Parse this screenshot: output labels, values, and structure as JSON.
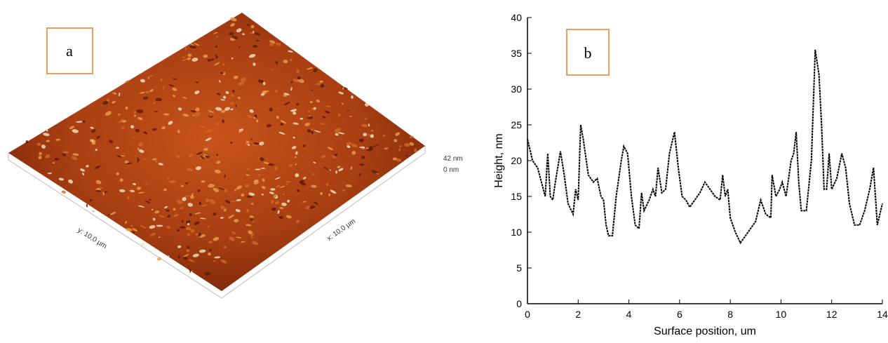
{
  "panel_a": {
    "label": "a",
    "scale_max": "42 nm",
    "scale_min": "0 nm",
    "y_axis": "y: 10,0 µm",
    "x_axis": "x: 10,0 µm"
  },
  "chart_data": {
    "type": "line",
    "annotation": "b",
    "x_label": "Surface position, um",
    "y_label": "Height, nm",
    "color": "#000000",
    "x": [
      0,
      0.2,
      0.4,
      0.55,
      0.7,
      0.8,
      0.9,
      1.0,
      1.1,
      1.3,
      1.45,
      1.6,
      1.8,
      1.9,
      2.0,
      2.1,
      2.2,
      2.4,
      2.6,
      2.75,
      2.9,
      3.0,
      3.1,
      3.2,
      3.35,
      3.5,
      3.7,
      3.8,
      3.95,
      4.1,
      4.25,
      4.4,
      4.5,
      4.6,
      4.8,
      4.95,
      5.05,
      5.15,
      5.3,
      5.45,
      5.6,
      5.8,
      5.95,
      6.1,
      6.25,
      6.4,
      6.6,
      6.8,
      7.0,
      7.2,
      7.4,
      7.6,
      7.7,
      7.8,
      7.9,
      8.0,
      8.2,
      8.4,
      8.6,
      8.8,
      9.0,
      9.2,
      9.4,
      9.6,
      9.65,
      9.8,
      9.95,
      10.05,
      10.2,
      10.4,
      10.5,
      10.6,
      10.7,
      10.8,
      11.0,
      11.2,
      11.35,
      11.5,
      11.6,
      11.7,
      11.8,
      11.9,
      12.0,
      12.2,
      12.4,
      12.55,
      12.7,
      12.9,
      13.1,
      13.3,
      13.5,
      13.65,
      13.8,
      14
    ],
    "values": [
      23,
      20,
      19,
      17,
      15,
      21,
      15,
      14.5,
      17,
      21.3,
      18,
      14,
      12.5,
      16,
      14.5,
      25,
      23,
      18,
      17,
      17.5,
      15,
      14.5,
      11,
      9.5,
      9.5,
      15,
      20,
      22,
      21,
      15,
      11,
      10.5,
      15.5,
      13,
      14.5,
      16,
      15,
      19,
      15.5,
      16,
      21,
      24,
      19,
      15,
      14.5,
      13.5,
      14.5,
      15.5,
      17,
      16,
      15,
      14.5,
      18,
      15,
      16,
      12,
      10,
      8.5,
      9.5,
      10.5,
      11.5,
      14.5,
      12.5,
      12,
      18,
      15,
      16,
      17,
      15,
      20,
      21,
      24,
      17,
      13,
      13,
      20,
      35.5,
      32,
      25,
      16,
      16,
      21,
      16,
      17.5,
      21,
      19,
      14,
      11,
      11,
      13,
      16,
      19,
      11,
      14
    ],
    "xlim": [
      0,
      14
    ],
    "ylim": [
      0,
      40
    ],
    "xticks": [
      0,
      2,
      4,
      6,
      8,
      10,
      12,
      14
    ],
    "yticks": [
      0,
      5,
      10,
      15,
      20,
      25,
      30,
      35,
      40
    ]
  }
}
